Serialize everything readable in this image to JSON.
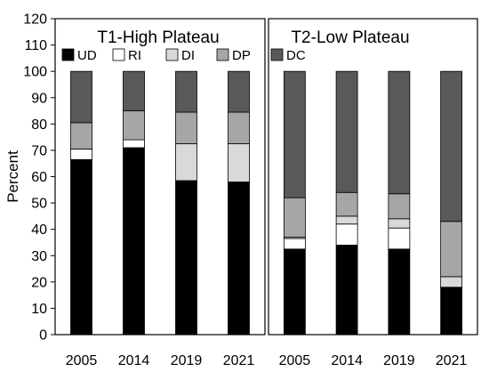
{
  "chart_data": [
    {
      "type": "bar",
      "stacked": true,
      "title": "T1-High Plateau",
      "categories": [
        "2005",
        "2014",
        "2019",
        "2021"
      ],
      "ylabel": "Percent",
      "ylim": [
        0,
        120
      ],
      "yticks": [
        0,
        10,
        20,
        30,
        40,
        50,
        60,
        70,
        80,
        90,
        100,
        110,
        120
      ],
      "legend_position": "top",
      "series": [
        {
          "name": "UD",
          "color": "#000000",
          "values": [
            66.5,
            71,
            58.5,
            58
          ]
        },
        {
          "name": "RI",
          "color": "#ffffff",
          "values": [
            4,
            3,
            0,
            0
          ]
        },
        {
          "name": "DI",
          "color": "#d9d9d9",
          "values": [
            0,
            0,
            14,
            14.5
          ]
        },
        {
          "name": "DP",
          "color": "#a6a6a6",
          "values": [
            10,
            11,
            12,
            12
          ]
        },
        {
          "name": "DC",
          "color": "#595959",
          "values": [
            19.5,
            15,
            15.5,
            15.5
          ]
        }
      ]
    },
    {
      "type": "bar",
      "stacked": true,
      "title": "T2-Low Plateau",
      "categories": [
        "2005",
        "2014",
        "2019",
        "2021"
      ],
      "ylim": [
        0,
        120
      ],
      "series": [
        {
          "name": "UD",
          "color": "#000000",
          "values": [
            32.5,
            34,
            32.5,
            18
          ]
        },
        {
          "name": "RI",
          "color": "#ffffff",
          "values": [
            4,
            8,
            8,
            0
          ]
        },
        {
          "name": "DI",
          "color": "#d9d9d9",
          "values": [
            0.5,
            3,
            3.5,
            4
          ]
        },
        {
          "name": "DP",
          "color": "#a6a6a6",
          "values": [
            15,
            9,
            9.5,
            21
          ]
        },
        {
          "name": "DC",
          "color": "#595959",
          "values": [
            48,
            46,
            46.5,
            57
          ]
        }
      ]
    }
  ]
}
